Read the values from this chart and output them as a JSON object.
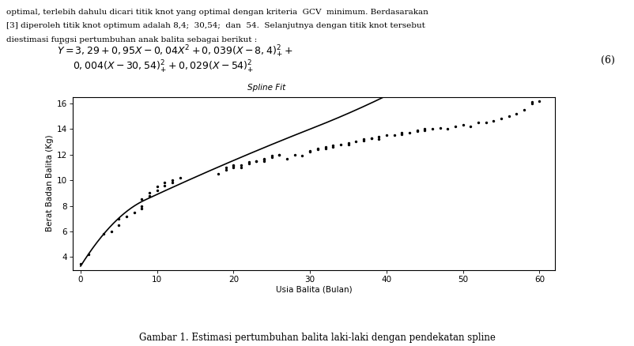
{
  "title": "Spline Fit",
  "xlabel": "Usia Balita (Bulan)",
  "ylabel": "Berat Badan Balita (Kg)",
  "caption": "Gambar 1. Estimasi pertumbuhan balita laki-laki dengan pendekatan spline",
  "xlim": [
    -1,
    62
  ],
  "ylim": [
    3.0,
    16.5
  ],
  "xticks": [
    0,
    10,
    20,
    30,
    40,
    50,
    60
  ],
  "yticks": [
    4,
    6,
    8,
    10,
    12,
    14,
    16
  ],
  "background_color": "#ffffff",
  "scatter_color": "black",
  "line_color": "black",
  "spline_coeffs": {
    "intercept": 3.29,
    "b1": 0.95,
    "b2": -0.04,
    "b3": 0.039,
    "b4": 0.004,
    "b5": 0.029,
    "k1": 8.4,
    "k2": 30.54,
    "k3": 54
  },
  "scatter_points": [
    [
      0,
      3.5
    ],
    [
      1,
      4.2
    ],
    [
      3,
      5.8
    ],
    [
      4,
      6.0
    ],
    [
      5,
      6.5
    ],
    [
      5,
      7.0
    ],
    [
      6,
      7.2
    ],
    [
      7,
      7.5
    ],
    [
      8,
      7.8
    ],
    [
      8,
      8.0
    ],
    [
      8,
      8.5
    ],
    [
      9,
      8.8
    ],
    [
      9,
      9.0
    ],
    [
      10,
      9.2
    ],
    [
      10,
      9.5
    ],
    [
      11,
      9.6
    ],
    [
      11,
      9.8
    ],
    [
      12,
      9.8
    ],
    [
      12,
      10.0
    ],
    [
      13,
      10.2
    ],
    [
      18,
      10.5
    ],
    [
      19,
      10.8
    ],
    [
      19,
      11.0
    ],
    [
      20,
      11.0
    ],
    [
      20,
      11.1
    ],
    [
      20,
      11.2
    ],
    [
      21,
      11.0
    ],
    [
      21,
      11.2
    ],
    [
      22,
      11.3
    ],
    [
      22,
      11.4
    ],
    [
      23,
      11.5
    ],
    [
      23,
      11.5
    ],
    [
      24,
      11.5
    ],
    [
      24,
      11.6
    ],
    [
      24,
      11.7
    ],
    [
      25,
      11.8
    ],
    [
      25,
      11.9
    ],
    [
      26,
      12.0
    ],
    [
      26,
      12.0
    ],
    [
      27,
      11.7
    ],
    [
      28,
      12.0
    ],
    [
      29,
      11.9
    ],
    [
      30,
      12.2
    ],
    [
      30,
      12.3
    ],
    [
      31,
      12.4
    ],
    [
      31,
      12.5
    ],
    [
      32,
      12.5
    ],
    [
      32,
      12.6
    ],
    [
      33,
      12.6
    ],
    [
      33,
      12.7
    ],
    [
      34,
      12.8
    ],
    [
      35,
      12.8
    ],
    [
      35,
      12.9
    ],
    [
      36,
      13.0
    ],
    [
      37,
      13.1
    ],
    [
      37,
      13.2
    ],
    [
      38,
      13.3
    ],
    [
      38,
      13.3
    ],
    [
      39,
      13.2
    ],
    [
      39,
      13.4
    ],
    [
      40,
      13.5
    ],
    [
      41,
      13.5
    ],
    [
      42,
      13.6
    ],
    [
      42,
      13.7
    ],
    [
      43,
      13.7
    ],
    [
      44,
      13.8
    ],
    [
      44,
      13.9
    ],
    [
      45,
      13.9
    ],
    [
      45,
      14.0
    ],
    [
      46,
      14.0
    ],
    [
      47,
      14.1
    ],
    [
      48,
      14.0
    ],
    [
      49,
      14.2
    ],
    [
      50,
      14.3
    ],
    [
      51,
      14.2
    ],
    [
      52,
      14.5
    ],
    [
      53,
      14.5
    ],
    [
      54,
      14.6
    ],
    [
      55,
      14.8
    ],
    [
      56,
      15.0
    ],
    [
      57,
      15.2
    ],
    [
      58,
      15.5
    ],
    [
      59,
      16.0
    ],
    [
      59,
      16.1
    ],
    [
      60,
      16.2
    ]
  ],
  "text_lines": [
    "optimal, terlebih dahulu dicari titik knot yang optimal dengan kriteria  GCV  minimum. Berdasarakan",
    "[3] diperoleh titik knot optimum adalah 8,4;  30,54;  dan  54.  Selanjutnya dengan titik knot tersebut",
    "diestimasi fungsi pertumbuhan anak balita sebagai berikut :"
  ],
  "eq_number": "(6)"
}
